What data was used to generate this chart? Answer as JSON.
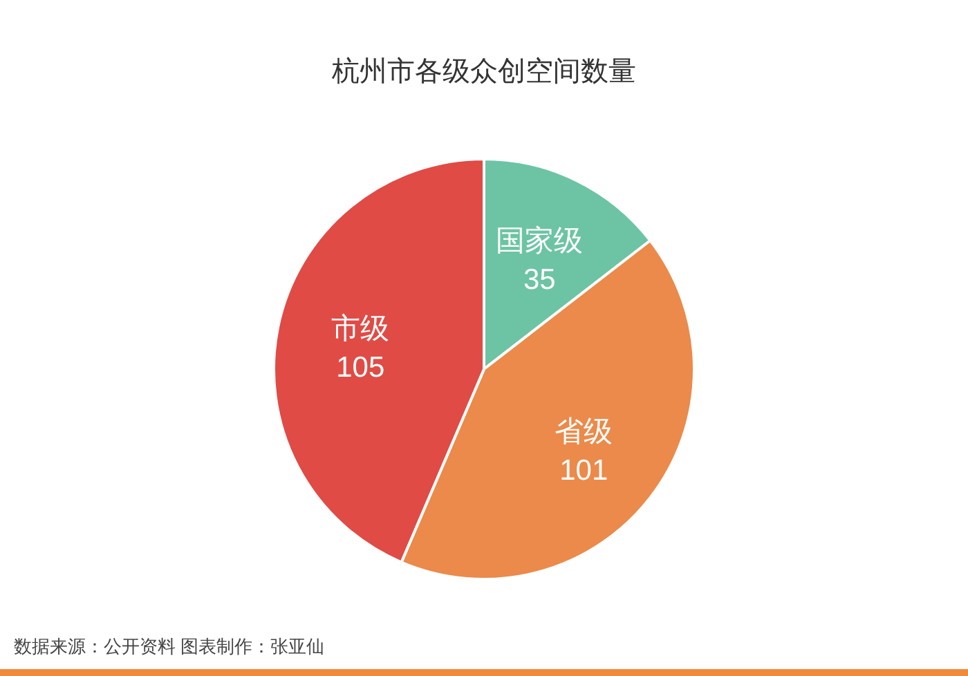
{
  "chart_data": {
    "type": "pie",
    "title": "杭州市各级众创空间数量",
    "categories": [
      "国家级",
      "省级",
      "市级"
    ],
    "values": [
      35,
      101,
      105
    ],
    "colors": [
      "#6cc4a4",
      "#eb8a4a",
      "#e04b45"
    ],
    "data_labels": true,
    "annotations": [
      "数据来源：公开资料  图表制作：张亚仙"
    ]
  }
}
